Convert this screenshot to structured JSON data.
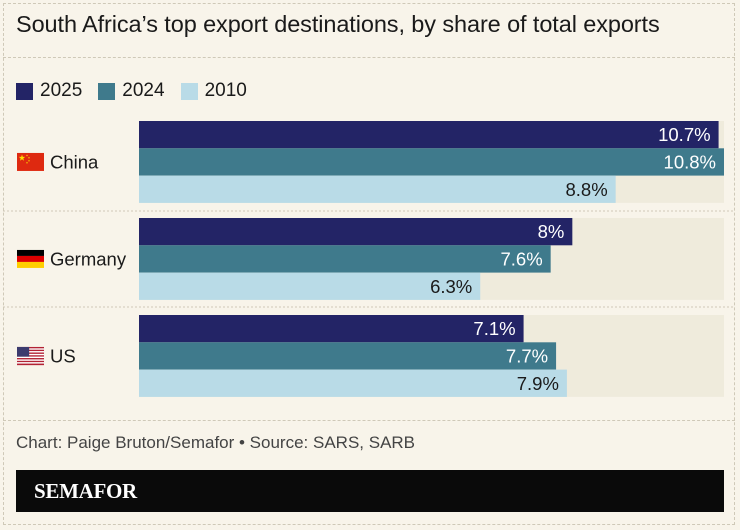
{
  "title": "South Africa’s top export destinations, by share of total exports",
  "source": "Chart: Paige Bruton/Semafor • Source: SARS, SARB",
  "brand": "SEMAFOR",
  "colors": {
    "2025": "#232466",
    "2024": "#3f7a8c",
    "2010": "#b9dbe7",
    "track": "#efebdc"
  },
  "chart_data": {
    "type": "bar",
    "orientation": "horizontal",
    "categories": [
      "China",
      "Germany",
      "US"
    ],
    "flags": [
      "china-flag-icon",
      "germany-flag-icon",
      "us-flag-icon"
    ],
    "series": [
      {
        "name": "2025",
        "values": [
          10.7,
          8,
          7.1
        ],
        "labels": [
          "10.7%",
          "8%",
          "7.1%"
        ]
      },
      {
        "name": "2024",
        "values": [
          10.8,
          7.6,
          7.7
        ],
        "labels": [
          "10.8%",
          "7.6%",
          "7.7%"
        ]
      },
      {
        "name": "2010",
        "values": [
          8.8,
          6.3,
          7.9
        ],
        "labels": [
          "8.8%",
          "6.3%",
          "7.9%"
        ]
      }
    ],
    "xlim": [
      0,
      10.8
    ],
    "legend": "top-left"
  }
}
